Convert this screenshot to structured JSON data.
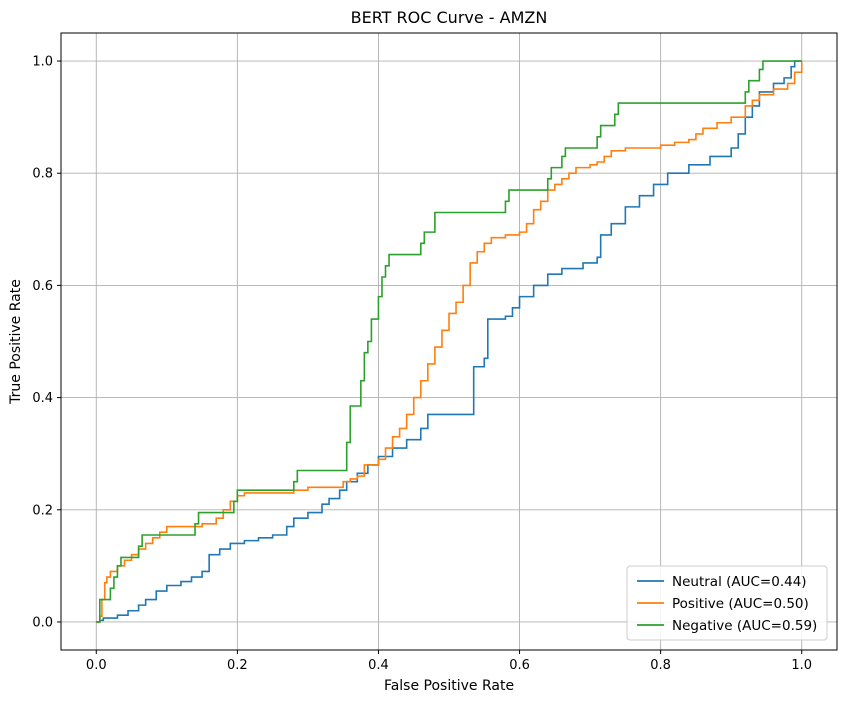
{
  "chart_data": {
    "type": "line",
    "title": "BERT ROC Curve - AMZN",
    "xlabel": "False Positive Rate",
    "ylabel": "True Positive Rate",
    "xlim": [
      -0.05,
      1.05
    ],
    "ylim": [
      -0.05,
      1.05
    ],
    "xticks": [
      "0.0",
      "0.2",
      "0.4",
      "0.6",
      "0.8",
      "1.0"
    ],
    "yticks": [
      "0.0",
      "0.2",
      "0.4",
      "0.6",
      "0.8",
      "1.0"
    ],
    "grid": true,
    "legend_position": "lower right",
    "series": [
      {
        "name": "Neutral (AUC=0.44)",
        "color": "#1f77b4",
        "points": [
          [
            0,
            0
          ],
          [
            0.005,
            0.003
          ],
          [
            0.01,
            0.007
          ],
          [
            0.03,
            0.012
          ],
          [
            0.045,
            0.02
          ],
          [
            0.06,
            0.03
          ],
          [
            0.07,
            0.04
          ],
          [
            0.085,
            0.055
          ],
          [
            0.1,
            0.065
          ],
          [
            0.12,
            0.072
          ],
          [
            0.135,
            0.08
          ],
          [
            0.15,
            0.09
          ],
          [
            0.16,
            0.12
          ],
          [
            0.175,
            0.13
          ],
          [
            0.19,
            0.14
          ],
          [
            0.21,
            0.145
          ],
          [
            0.23,
            0.15
          ],
          [
            0.25,
            0.155
          ],
          [
            0.27,
            0.17
          ],
          [
            0.28,
            0.185
          ],
          [
            0.3,
            0.195
          ],
          [
            0.32,
            0.21
          ],
          [
            0.33,
            0.22
          ],
          [
            0.345,
            0.235
          ],
          [
            0.355,
            0.25
          ],
          [
            0.37,
            0.265
          ],
          [
            0.385,
            0.28
          ],
          [
            0.4,
            0.295
          ],
          [
            0.42,
            0.31
          ],
          [
            0.44,
            0.325
          ],
          [
            0.46,
            0.345
          ],
          [
            0.47,
            0.37
          ],
          [
            0.48,
            0.37
          ],
          [
            0.53,
            0.37
          ],
          [
            0.535,
            0.455
          ],
          [
            0.55,
            0.47
          ],
          [
            0.555,
            0.54
          ],
          [
            0.58,
            0.545
          ],
          [
            0.59,
            0.56
          ],
          [
            0.6,
            0.58
          ],
          [
            0.62,
            0.6
          ],
          [
            0.64,
            0.62
          ],
          [
            0.66,
            0.63
          ],
          [
            0.69,
            0.64
          ],
          [
            0.71,
            0.65
          ],
          [
            0.715,
            0.69
          ],
          [
            0.73,
            0.71
          ],
          [
            0.75,
            0.74
          ],
          [
            0.77,
            0.76
          ],
          [
            0.79,
            0.78
          ],
          [
            0.81,
            0.8
          ],
          [
            0.84,
            0.815
          ],
          [
            0.87,
            0.83
          ],
          [
            0.9,
            0.845
          ],
          [
            0.91,
            0.87
          ],
          [
            0.92,
            0.9
          ],
          [
            0.93,
            0.92
          ],
          [
            0.94,
            0.945
          ],
          [
            0.96,
            0.96
          ],
          [
            0.975,
            0.97
          ],
          [
            0.985,
            0.99
          ],
          [
            0.99,
            1.0
          ],
          [
            1.0,
            1.0
          ]
        ]
      },
      {
        "name": "Positive (AUC=0.50)",
        "color": "#ff7f0e",
        "points": [
          [
            0,
            0
          ],
          [
            0.005,
            0.01
          ],
          [
            0.008,
            0.04
          ],
          [
            0.012,
            0.07
          ],
          [
            0.015,
            0.08
          ],
          [
            0.02,
            0.09
          ],
          [
            0.03,
            0.1
          ],
          [
            0.04,
            0.11
          ],
          [
            0.05,
            0.12
          ],
          [
            0.06,
            0.13
          ],
          [
            0.07,
            0.14
          ],
          [
            0.08,
            0.15
          ],
          [
            0.09,
            0.16
          ],
          [
            0.1,
            0.17
          ],
          [
            0.12,
            0.17
          ],
          [
            0.15,
            0.175
          ],
          [
            0.17,
            0.185
          ],
          [
            0.18,
            0.2
          ],
          [
            0.19,
            0.215
          ],
          [
            0.2,
            0.225
          ],
          [
            0.21,
            0.23
          ],
          [
            0.25,
            0.23
          ],
          [
            0.28,
            0.235
          ],
          [
            0.3,
            0.24
          ],
          [
            0.32,
            0.24
          ],
          [
            0.35,
            0.25
          ],
          [
            0.36,
            0.255
          ],
          [
            0.37,
            0.26
          ],
          [
            0.38,
            0.27
          ],
          [
            0.38,
            0.28
          ],
          [
            0.4,
            0.29
          ],
          [
            0.41,
            0.31
          ],
          [
            0.42,
            0.33
          ],
          [
            0.43,
            0.345
          ],
          [
            0.44,
            0.37
          ],
          [
            0.45,
            0.4
          ],
          [
            0.46,
            0.43
          ],
          [
            0.47,
            0.46
          ],
          [
            0.48,
            0.49
          ],
          [
            0.49,
            0.52
          ],
          [
            0.5,
            0.55
          ],
          [
            0.51,
            0.57
          ],
          [
            0.52,
            0.6
          ],
          [
            0.53,
            0.64
          ],
          [
            0.54,
            0.66
          ],
          [
            0.55,
            0.675
          ],
          [
            0.56,
            0.685
          ],
          [
            0.58,
            0.69
          ],
          [
            0.6,
            0.695
          ],
          [
            0.61,
            0.71
          ],
          [
            0.62,
            0.735
          ],
          [
            0.63,
            0.75
          ],
          [
            0.64,
            0.77
          ],
          [
            0.65,
            0.78
          ],
          [
            0.66,
            0.79
          ],
          [
            0.67,
            0.8
          ],
          [
            0.68,
            0.81
          ],
          [
            0.7,
            0.815
          ],
          [
            0.71,
            0.82
          ],
          [
            0.72,
            0.83
          ],
          [
            0.73,
            0.84
          ],
          [
            0.75,
            0.845
          ],
          [
            0.8,
            0.85
          ],
          [
            0.82,
            0.855
          ],
          [
            0.84,
            0.86
          ],
          [
            0.85,
            0.87
          ],
          [
            0.86,
            0.88
          ],
          [
            0.88,
            0.89
          ],
          [
            0.9,
            0.9
          ],
          [
            0.92,
            0.92
          ],
          [
            0.93,
            0.93
          ],
          [
            0.94,
            0.94
          ],
          [
            0.96,
            0.95
          ],
          [
            0.98,
            0.96
          ],
          [
            0.99,
            0.98
          ],
          [
            1.0,
            1.0
          ]
        ]
      },
      {
        "name": "Negative (AUC=0.59)",
        "color": "#2ca02c",
        "points": [
          [
            0,
            0
          ],
          [
            0.005,
            0.04
          ],
          [
            0.02,
            0.06
          ],
          [
            0.025,
            0.08
          ],
          [
            0.03,
            0.1
          ],
          [
            0.035,
            0.115
          ],
          [
            0.06,
            0.135
          ],
          [
            0.065,
            0.155
          ],
          [
            0.14,
            0.175
          ],
          [
            0.145,
            0.195
          ],
          [
            0.195,
            0.215
          ],
          [
            0.2,
            0.235
          ],
          [
            0.28,
            0.25
          ],
          [
            0.285,
            0.27
          ],
          [
            0.355,
            0.32
          ],
          [
            0.36,
            0.385
          ],
          [
            0.37,
            0.385
          ],
          [
            0.375,
            0.43
          ],
          [
            0.38,
            0.48
          ],
          [
            0.385,
            0.5
          ],
          [
            0.39,
            0.54
          ],
          [
            0.4,
            0.58
          ],
          [
            0.405,
            0.615
          ],
          [
            0.41,
            0.635
          ],
          [
            0.415,
            0.655
          ],
          [
            0.46,
            0.675
          ],
          [
            0.465,
            0.695
          ],
          [
            0.48,
            0.73
          ],
          [
            0.58,
            0.75
          ],
          [
            0.585,
            0.77
          ],
          [
            0.64,
            0.79
          ],
          [
            0.645,
            0.81
          ],
          [
            0.66,
            0.83
          ],
          [
            0.665,
            0.845
          ],
          [
            0.71,
            0.865
          ],
          [
            0.715,
            0.885
          ],
          [
            0.735,
            0.905
          ],
          [
            0.74,
            0.925
          ],
          [
            0.92,
            0.945
          ],
          [
            0.925,
            0.965
          ],
          [
            0.94,
            0.985
          ],
          [
            0.945,
            1.0
          ],
          [
            1.0,
            1.0
          ]
        ]
      }
    ]
  }
}
